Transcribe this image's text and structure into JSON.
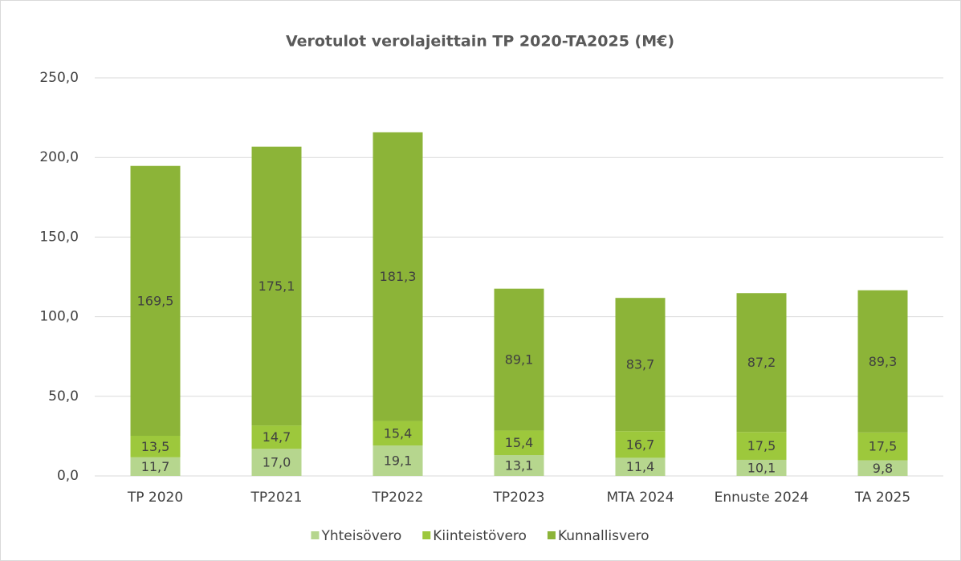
{
  "chart_data": {
    "type": "stacked_bar",
    "title": "Verotulot verolajeittain TP 2020-TA2025 (M€)",
    "categories": [
      "TP 2020",
      "TP2021",
      "TP2022",
      "TP2023",
      "MTA 2024",
      "Ennuste 2024",
      "TA 2025"
    ],
    "series": [
      {
        "name": "Yhteisövero",
        "color": "#b6d68e",
        "values": [
          11.7,
          17.0,
          19.1,
          13.1,
          11.4,
          10.1,
          9.8
        ],
        "value_labels": [
          "11,7",
          "17,0",
          "19,1",
          "13,1",
          "11,4",
          "10,1",
          "9,8"
        ]
      },
      {
        "name": "Kiinteistövero",
        "color": "#9dc83c",
        "values": [
          13.5,
          14.7,
          15.4,
          15.4,
          16.7,
          17.5,
          17.5
        ],
        "value_labels": [
          "13,5",
          "14,7",
          "15,4",
          "15,4",
          "16,7",
          "17,5",
          "17,5"
        ]
      },
      {
        "name": "Kunnallisvero",
        "color": "#8cb438",
        "values": [
          169.5,
          175.1,
          181.3,
          89.1,
          83.7,
          87.2,
          89.3
        ],
        "value_labels": [
          "169,5",
          "175,1",
          "181,3",
          "89,1",
          "83,7",
          "87,2",
          "89,3"
        ]
      }
    ],
    "ylim": [
      0,
      250
    ],
    "yticks": [
      {
        "value": 0,
        "label": "0,0"
      },
      {
        "value": 50,
        "label": "50,0"
      },
      {
        "value": 100,
        "label": "100,0"
      },
      {
        "value": 150,
        "label": "150,0"
      },
      {
        "value": 200,
        "label": "200,0"
      },
      {
        "value": 250,
        "label": "250,0"
      }
    ],
    "grid": true,
    "legend": "bottom"
  }
}
